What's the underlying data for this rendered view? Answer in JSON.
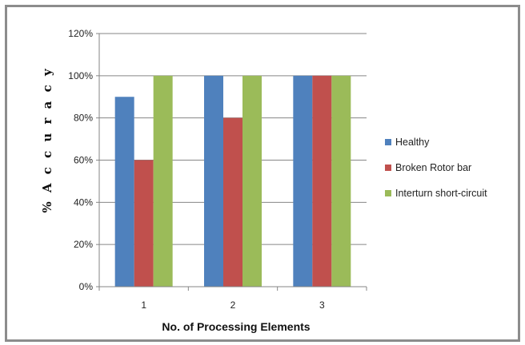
{
  "chart_data": {
    "type": "bar",
    "title": "",
    "xlabel": "No. of Processing Elements",
    "ylabel": "% A c c u r a c y",
    "categories": [
      "1",
      "2",
      "3"
    ],
    "series": [
      {
        "name": "Healthy",
        "values": [
          90,
          100,
          100
        ],
        "color": "#4f81bd"
      },
      {
        "name": "Broken Rotor bar",
        "values": [
          60,
          80,
          100
        ],
        "color": "#c0504d"
      },
      {
        "name": "Interturn short-circuit",
        "values": [
          100,
          100,
          100
        ],
        "color": "#9bbb59"
      }
    ],
    "ylim": [
      0,
      120
    ],
    "yticks": [
      0,
      20,
      40,
      60,
      80,
      100,
      120
    ],
    "ytick_labels": [
      "0%",
      "20%",
      "40%",
      "60%",
      "80%",
      "100%",
      "120%"
    ],
    "grid": true,
    "legend_position": "right"
  }
}
